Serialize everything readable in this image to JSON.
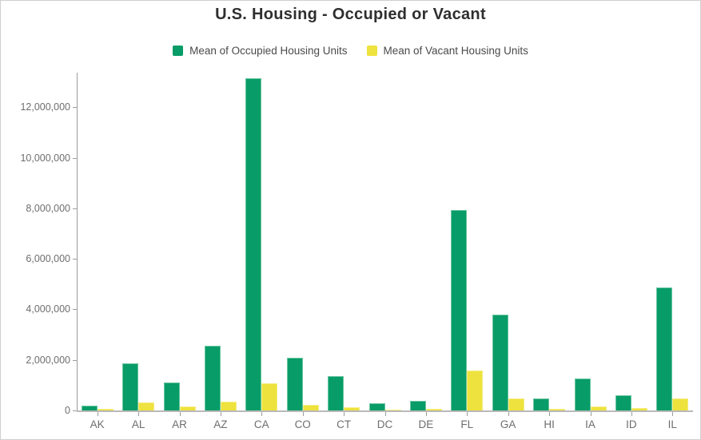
{
  "title": "U.S. Housing - Occupied or Vacant",
  "colors": {
    "occupied": "#089c68",
    "vacant": "#eee23e",
    "axis_line": "#9c9c9c",
    "axis_text": "#6e6e6e",
    "legend_text": "#4a4a4a",
    "title_text": "#2f2f2f"
  },
  "chart_data": {
    "type": "bar",
    "title": "U.S. Housing - Occupied or Vacant",
    "xlabel": "",
    "ylabel": "",
    "grid": false,
    "legend_position": "top",
    "ylim": [
      0,
      13300000
    ],
    "y_ticks": [
      0,
      2000000,
      4000000,
      6000000,
      8000000,
      10000000,
      12000000
    ],
    "categories": [
      "AK",
      "AL",
      "AR",
      "AZ",
      "CA",
      "CO",
      "CT",
      "DC",
      "DE",
      "FL",
      "GA",
      "HI",
      "IA",
      "ID",
      "IL"
    ],
    "series": [
      {
        "name": "Mean of Occupied Housing Units",
        "color": "#089c68",
        "values": [
          200000,
          1850000,
          1120000,
          2570000,
          13150000,
          2090000,
          1370000,
          270000,
          370000,
          7920000,
          3790000,
          460000,
          1250000,
          600000,
          4870000
        ]
      },
      {
        "name": "Mean of Vacant Housing Units",
        "color": "#eee23e",
        "values": [
          60000,
          330000,
          170000,
          350000,
          1060000,
          210000,
          135000,
          30000,
          60000,
          1570000,
          480000,
          75000,
          145000,
          100000,
          480000
        ]
      }
    ]
  }
}
